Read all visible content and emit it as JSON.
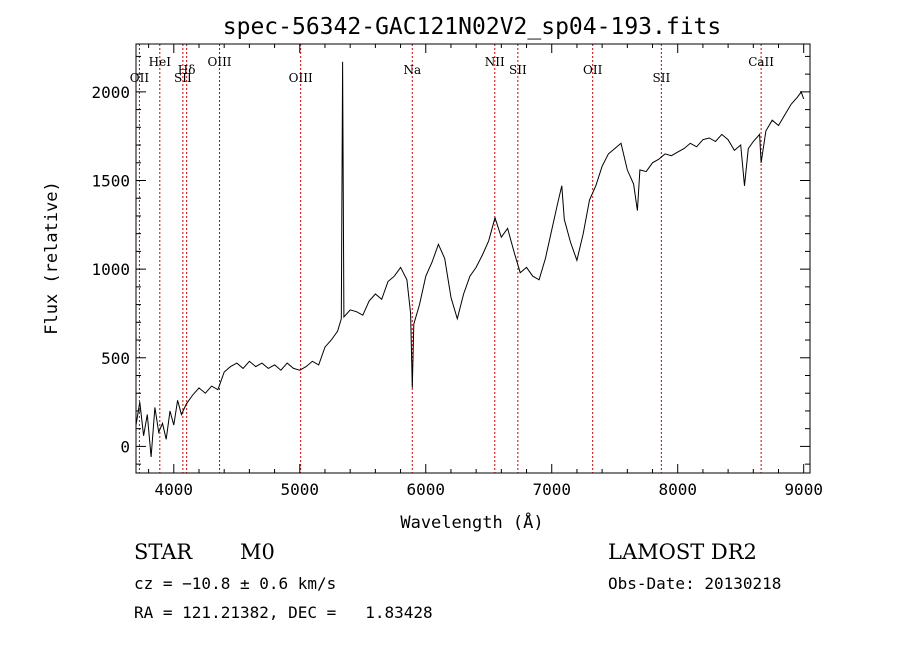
{
  "chart_data": {
    "type": "line",
    "title": "spec-56342-GAC121N02V2_sp04-193.fits",
    "xlabel": "Wavelength (Å)",
    "ylabel": "Flux (relative)",
    "xlim": [
      3700,
      9050
    ],
    "ylim": [
      -150,
      2270
    ],
    "xticks": [
      4000,
      5000,
      6000,
      7000,
      8000,
      9000
    ],
    "xtick_labels": [
      "4000",
      "5000",
      "6000",
      "7000",
      "8000",
      "9000"
    ],
    "yticks": [
      0,
      500,
      1000,
      1500,
      2000
    ],
    "ytick_labels": [
      "0",
      "500",
      "1000",
      "1500",
      "2000"
    ],
    "grid": false,
    "line_color": "#000000",
    "marker_color": "#cc0000",
    "line_markers": [
      {
        "label": "HeI",
        "wavelength": 3889,
        "row": 1
      },
      {
        "label": "OII",
        "wavelength": 3727,
        "row": 2
      },
      {
        "label": "Hδ",
        "wavelength": 4102,
        "row": 1.5
      },
      {
        "label": "SII",
        "wavelength": 4072,
        "row": 2
      },
      {
        "label": "OIII",
        "wavelength": 4363,
        "row": 1
      },
      {
        "label": "OIII",
        "wavelength": 5007,
        "row": 2
      },
      {
        "label": "Na",
        "wavelength": 5893,
        "row": 1.5
      },
      {
        "label": "NII",
        "wavelength": 6548,
        "row": 1
      },
      {
        "label": "SII",
        "wavelength": 6731,
        "row": 1.5
      },
      {
        "label": "OII",
        "wavelength": 7325,
        "row": 1.5
      },
      {
        "label": "SII",
        "wavelength": 7870,
        "row": 2
      },
      {
        "label": "CaII",
        "wavelength": 8662,
        "row": 1
      }
    ],
    "spectrum": [
      [
        3700,
        120
      ],
      [
        3730,
        250
      ],
      [
        3760,
        60
      ],
      [
        3790,
        180
      ],
      [
        3820,
        -60
      ],
      [
        3850,
        220
      ],
      [
        3880,
        80
      ],
      [
        3910,
        130
      ],
      [
        3940,
        40
      ],
      [
        3970,
        200
      ],
      [
        4000,
        120
      ],
      [
        4030,
        260
      ],
      [
        4060,
        180
      ],
      [
        4100,
        240
      ],
      [
        4150,
        290
      ],
      [
        4200,
        330
      ],
      [
        4250,
        300
      ],
      [
        4300,
        340
      ],
      [
        4350,
        320
      ],
      [
        4400,
        420
      ],
      [
        4450,
        450
      ],
      [
        4500,
        470
      ],
      [
        4550,
        440
      ],
      [
        4600,
        480
      ],
      [
        4650,
        450
      ],
      [
        4700,
        470
      ],
      [
        4750,
        440
      ],
      [
        4800,
        460
      ],
      [
        4850,
        430
      ],
      [
        4900,
        470
      ],
      [
        4950,
        440
      ],
      [
        5000,
        430
      ],
      [
        5050,
        450
      ],
      [
        5100,
        480
      ],
      [
        5150,
        460
      ],
      [
        5200,
        560
      ],
      [
        5250,
        600
      ],
      [
        5300,
        650
      ],
      [
        5330,
        720
      ],
      [
        5340,
        2170
      ],
      [
        5350,
        730
      ],
      [
        5400,
        770
      ],
      [
        5450,
        760
      ],
      [
        5500,
        740
      ],
      [
        5550,
        820
      ],
      [
        5600,
        860
      ],
      [
        5650,
        830
      ],
      [
        5700,
        930
      ],
      [
        5750,
        960
      ],
      [
        5800,
        1010
      ],
      [
        5850,
        940
      ],
      [
        5880,
        750
      ],
      [
        5893,
        330
      ],
      [
        5905,
        690
      ],
      [
        5950,
        800
      ],
      [
        6000,
        960
      ],
      [
        6050,
        1040
      ],
      [
        6100,
        1140
      ],
      [
        6150,
        1060
      ],
      [
        6200,
        840
      ],
      [
        6250,
        720
      ],
      [
        6300,
        860
      ],
      [
        6350,
        960
      ],
      [
        6400,
        1010
      ],
      [
        6450,
        1080
      ],
      [
        6500,
        1160
      ],
      [
        6550,
        1290
      ],
      [
        6600,
        1180
      ],
      [
        6650,
        1230
      ],
      [
        6700,
        1100
      ],
      [
        6750,
        980
      ],
      [
        6800,
        1010
      ],
      [
        6850,
        960
      ],
      [
        6900,
        940
      ],
      [
        6950,
        1060
      ],
      [
        7000,
        1220
      ],
      [
        7050,
        1380
      ],
      [
        7080,
        1470
      ],
      [
        7100,
        1280
      ],
      [
        7150,
        1150
      ],
      [
        7200,
        1050
      ],
      [
        7250,
        1200
      ],
      [
        7300,
        1390
      ],
      [
        7350,
        1470
      ],
      [
        7400,
        1580
      ],
      [
        7450,
        1650
      ],
      [
        7500,
        1680
      ],
      [
        7550,
        1710
      ],
      [
        7600,
        1560
      ],
      [
        7650,
        1480
      ],
      [
        7680,
        1330
      ],
      [
        7700,
        1560
      ],
      [
        7750,
        1550
      ],
      [
        7800,
        1600
      ],
      [
        7850,
        1620
      ],
      [
        7900,
        1650
      ],
      [
        7950,
        1640
      ],
      [
        8000,
        1660
      ],
      [
        8050,
        1680
      ],
      [
        8100,
        1710
      ],
      [
        8150,
        1690
      ],
      [
        8200,
        1730
      ],
      [
        8250,
        1740
      ],
      [
        8300,
        1720
      ],
      [
        8350,
        1760
      ],
      [
        8400,
        1730
      ],
      [
        8450,
        1670
      ],
      [
        8500,
        1700
      ],
      [
        8530,
        1470
      ],
      [
        8560,
        1680
      ],
      [
        8600,
        1720
      ],
      [
        8650,
        1760
      ],
      [
        8662,
        1600
      ],
      [
        8700,
        1780
      ],
      [
        8750,
        1840
      ],
      [
        8800,
        1810
      ],
      [
        8850,
        1870
      ],
      [
        8900,
        1930
      ],
      [
        8950,
        1970
      ],
      [
        8980,
        2000
      ],
      [
        9000,
        1960
      ]
    ]
  },
  "info": {
    "object_class": "STAR",
    "subclass": "M0",
    "redshift": "cz = −10.8 ± 0.6 km/s",
    "coords": "RA = 121.21382, DEC =   1.83428",
    "survey": "LAMOST DR2",
    "obs_date": "Obs-Date: 20130218"
  }
}
